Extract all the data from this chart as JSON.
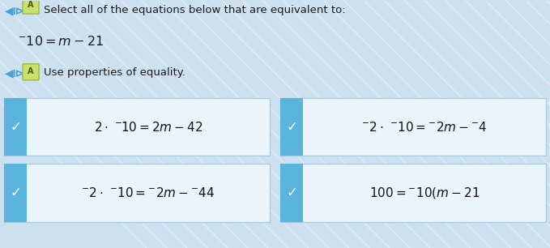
{
  "bg_color": "#cce0f0",
  "box_bg": "#eaf4fb",
  "check_bg": "#5ab4de",
  "check_color": "white",
  "title_line1": "Select all of the equations below that are equivalent to:",
  "title_eq": "$^{-}10 = m - 21$",
  "subtitle": "Use properties of equality.",
  "boxes": [
    {
      "row": 0,
      "col": 0,
      "eq": "$2 \\cdot\\ ^{-\\!}10 = 2m - 42$",
      "checked": true
    },
    {
      "row": 0,
      "col": 1,
      "eq": "$^{-}2 \\cdot\\ ^{-}10 = ^{-}2m - {^{-}4}$",
      "checked": true
    },
    {
      "row": 1,
      "col": 0,
      "eq": "$^{-}2 \\cdot\\ ^{-}10 = ^{-}2m - {^{-}44}$",
      "checked": true
    },
    {
      "row": 1,
      "col": 1,
      "eq": "$100 = {^{-}10}(m - 21$",
      "checked": true
    }
  ],
  "fig_width": 6.79,
  "fig_height": 3.06,
  "dpi": 100
}
